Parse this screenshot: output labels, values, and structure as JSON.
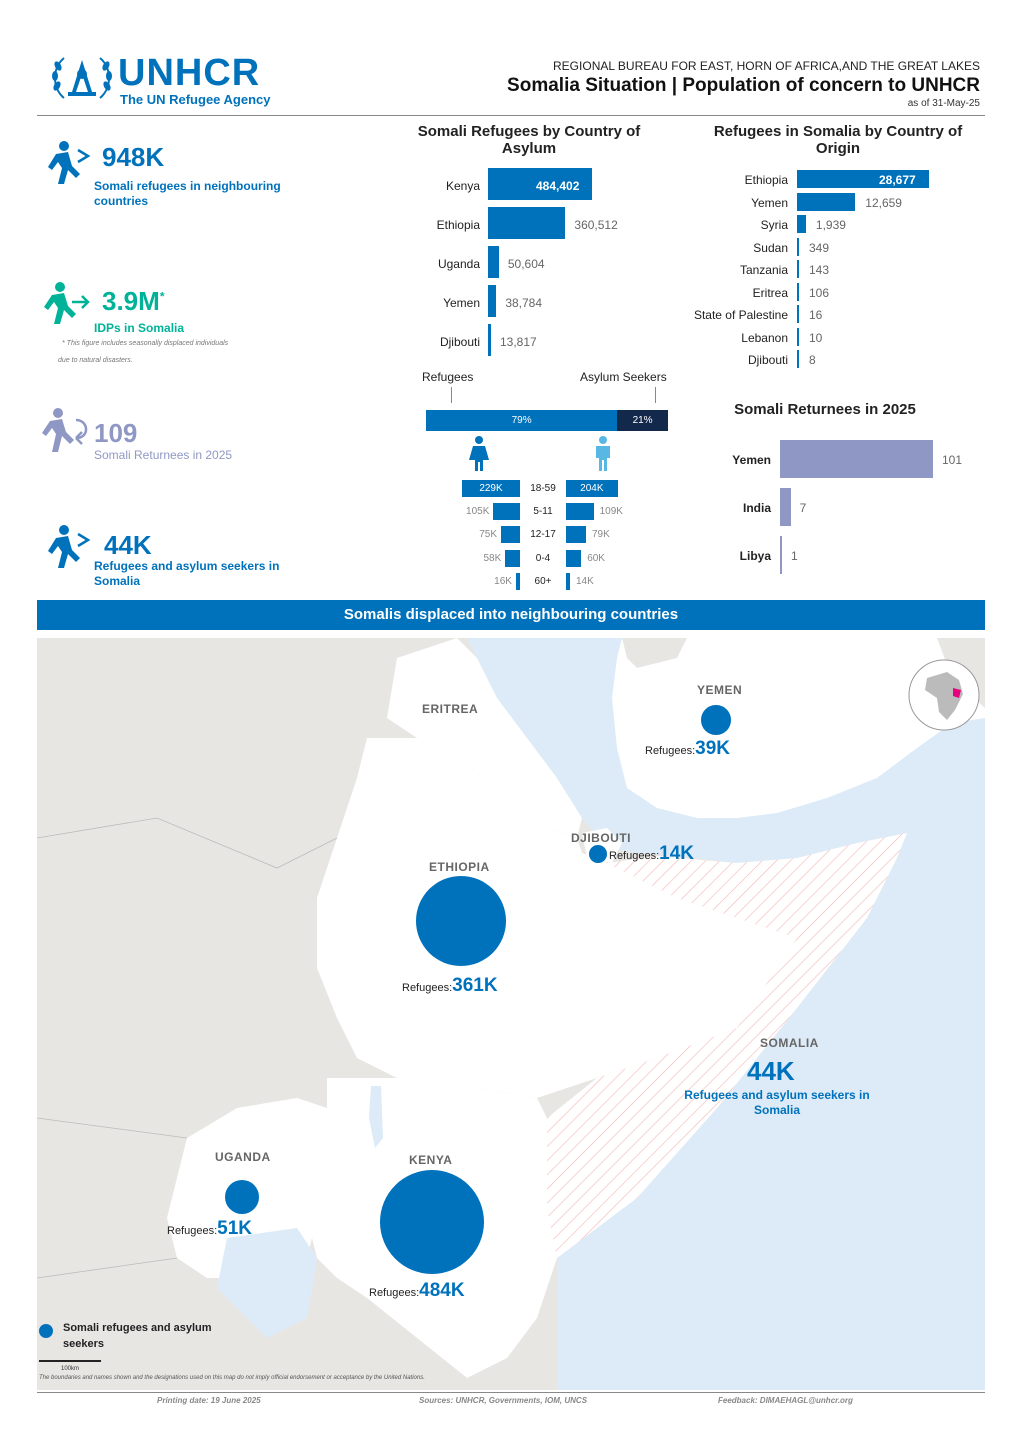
{
  "header": {
    "logo_text": "UNHCR",
    "logo_sub": "The UN Refugee Agency",
    "bureau": "REGIONAL BUREAU FOR EAST, HORN OF AFRICA,AND THE GREAT LAKES",
    "title": "Somalia Situation | Population of concern to UNHCR",
    "date": "as of 31-May-25"
  },
  "kpis": [
    {
      "value": "948K",
      "label1": "Somali refugees in neighbouring",
      "label2": "countries",
      "color": "#0072bc",
      "icon": "refugee-icon"
    },
    {
      "value": "3.9M",
      "sup": "*",
      "label1": "IDPs in Somalia",
      "note1": "* This figure includes seasonally displaced individuals",
      "note2": "due to natural disasters.",
      "color": "#00b398",
      "icon": "idp-icon"
    },
    {
      "value": "109",
      "label1": "Somali Returnees in 2025",
      "color": "#8f98c4",
      "icon": "returnee-icon"
    },
    {
      "value": "44K",
      "label1": "Refugees and asylum seekers in",
      "label2": "Somalia",
      "color": "#0072bc",
      "icon": "refugee-icon"
    }
  ],
  "asylum_chart": {
    "title1": "Somali Refugees by Country of",
    "title2": "Asylum",
    "chart_data": {
      "type": "bar",
      "categories": [
        "Kenya",
        "Ethiopia",
        "Uganda",
        "Yemen",
        "Djibouti"
      ],
      "values": [
        484402,
        360512,
        50604,
        38784,
        13817
      ],
      "labels": [
        "484,402",
        "360,512",
        "50,604",
        "38,784",
        "13,817"
      ]
    }
  },
  "origin_chart": {
    "title1": "Refugees in Somalia by Country of",
    "title2": "Origin",
    "chart_data": {
      "type": "bar",
      "categories": [
        "Ethiopia",
        "Yemen",
        "Syria",
        "Sudan",
        "Tanzania",
        "Eritrea",
        "State of Palestine",
        "Lebanon",
        "Djibouti"
      ],
      "values": [
        28677,
        12659,
        1939,
        349,
        143,
        106,
        16,
        10,
        8
      ],
      "labels": [
        "28,677",
        "12,659",
        "1,939",
        "349",
        "143",
        "106",
        "16",
        "10",
        "8"
      ]
    }
  },
  "split": {
    "refugees_label": "Refugees",
    "asylum_label": "Asylum Seekers",
    "refugees_pct": "79%",
    "asylum_pct": "21%",
    "refugees_value": 79,
    "asylum_value": 21
  },
  "pyramid": {
    "rows": [
      {
        "age": "18-59",
        "female": "229K",
        "male": "204K",
        "f": 229,
        "m": 204
      },
      {
        "age": "5-11",
        "female": "105K",
        "male": "109K",
        "f": 105,
        "m": 109
      },
      {
        "age": "12-17",
        "female": "75K",
        "male": "79K",
        "f": 75,
        "m": 79
      },
      {
        "age": "0-4",
        "female": "58K",
        "male": "60K",
        "f": 58,
        "m": 60
      },
      {
        "age": "60+",
        "female": "16K",
        "male": "14K",
        "f": 16,
        "m": 14
      }
    ]
  },
  "returnees_chart": {
    "title": "Somali Returnees in 2025",
    "chart_data": {
      "type": "bar",
      "categories": [
        "Yemen",
        "India",
        "Libya"
      ],
      "values": [
        101,
        7,
        1
      ],
      "labels": [
        "101",
        "7",
        "1"
      ]
    }
  },
  "banner": "Somalis displaced into neighbouring countries",
  "map": {
    "countries": [
      "ERITREA",
      "YEMEN",
      "DJIBOUTI",
      "ETHIOPIA",
      "SOMALIA",
      "UGANDA",
      "KENYA"
    ],
    "ref_label": "Refugees:",
    "yemen": "39K",
    "djibouti": "14K",
    "ethiopia": "361K",
    "uganda": "51K",
    "kenya": "484K",
    "somalia_value": "44K",
    "somalia_label1": "Refugees and asylum seekers in",
    "somalia_label2": "Somalia",
    "legend1": "Somali refugees and asylum",
    "legend2": "seekers",
    "scale": "100km",
    "disclaimer": "The boundaries and names shown and the designations used on this map do not imply official endorsement or acceptance by the United Nations."
  },
  "footer": {
    "printing": "Printing date: 19 June 2025",
    "sources": "Sources: UNHCR, Governments, IOM, UNCS",
    "feedback": "Feedback: DIMAEHAGL@unhcr.org"
  }
}
